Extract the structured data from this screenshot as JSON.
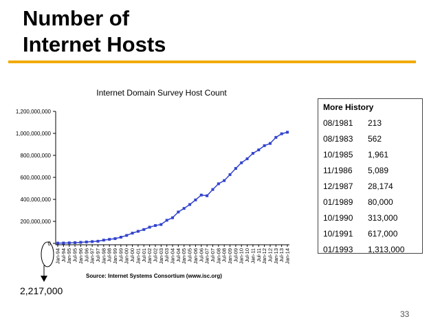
{
  "slide": {
    "title_line1": "Number of",
    "title_line2": "Internet Hosts",
    "page_number": "33",
    "accent_color": "#f2a900"
  },
  "callout": {
    "label": "2,217,000"
  },
  "history": {
    "title": "More History",
    "rows": [
      {
        "date": "08/1981",
        "value": "213"
      },
      {
        "date": "08/1983",
        "value": "562"
      },
      {
        "date": "10/1985",
        "value": "1,961"
      },
      {
        "date": "11/1986",
        "value": "5,089"
      },
      {
        "date": "12/1987",
        "value": "28,174"
      },
      {
        "date": "01/1989",
        "value": "80,000"
      },
      {
        "date": "10/1990",
        "value": "313,000"
      },
      {
        "date": "10/1991",
        "value": "617,000"
      },
      {
        "date": "01/1993",
        "value": "1,313,000"
      }
    ]
  },
  "chart_data": {
    "type": "line",
    "title": "Internet Domain Survey Host Count",
    "source": "Source: Internet Systems Consortium (www.isc.org)",
    "xlabel": "",
    "ylabel": "",
    "ylim": [
      0,
      1200000000
    ],
    "y_ticks": [
      {
        "value": 0,
        "label": "0"
      },
      {
        "value": 200000000,
        "label": "200,000,000"
      },
      {
        "value": 400000000,
        "label": "400,000,000"
      },
      {
        "value": 600000000,
        "label": "600,000,000"
      },
      {
        "value": 800000000,
        "label": "800,000,000"
      },
      {
        "value": 1000000000,
        "label": "1,000,000,000"
      },
      {
        "value": 1200000000,
        "label": "1,200,000,000"
      }
    ],
    "grid": false,
    "legend": "none",
    "series_color": "#3344cc",
    "categories": [
      "Jan-94",
      "Jul-94",
      "Jan-95",
      "Jul-95",
      "Jan-96",
      "Jul-96",
      "Jan-97",
      "Jul-97",
      "Jan-98",
      "Jul-98",
      "Jan-99",
      "Jul-99",
      "Jan-00",
      "Jul-00",
      "Jan-01",
      "Jul-01",
      "Jan-02",
      "Jul-02",
      "Jan-03",
      "Jul-03",
      "Jan-04",
      "Jul-04",
      "Jan-05",
      "Jul-05",
      "Jan-06",
      "Jul-06",
      "Jan-07",
      "Jul-07",
      "Jan-08",
      "Jul-08",
      "Jan-09",
      "Jul-09",
      "Jan-10",
      "Jul-10",
      "Jan-11",
      "Jul-11",
      "Jan-12",
      "Jul-12",
      "Jan-13",
      "Jul-13",
      "Jan-14"
    ],
    "series": [
      {
        "values": [
          2217000,
          3212000,
          4852000,
          6642000,
          9472000,
          12881000,
          16146000,
          19540000,
          29670000,
          36739000,
          43230000,
          56218000,
          72398000,
          93047000,
          109574000,
          125888000,
          147345000,
          162128000,
          171638000,
          210000000,
          233101000,
          285139000,
          317646000,
          353284000,
          394991000,
          439286000,
          433193000,
          489774000,
          541677000,
          570937000,
          625226000,
          681064000,
          732741000,
          768913000,
          818374000,
          849869000,
          888239000,
          908585000,
          963518000,
          996230000,
          1010251000
        ]
      }
    ]
  }
}
